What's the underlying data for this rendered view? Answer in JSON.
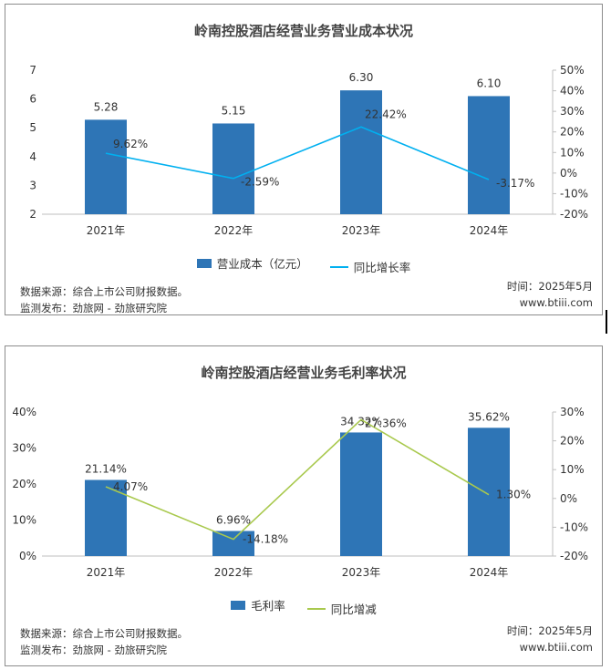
{
  "chart_data": [
    {
      "type": "bar",
      "title": "岭南控股酒店经营业务营业成本状况",
      "categories": [
        "2021年",
        "2022年",
        "2023年",
        "2024年"
      ],
      "series": [
        {
          "name": "营业成本（亿元）",
          "kind": "bar",
          "axis": "left",
          "values": [
            5.28,
            5.15,
            6.3,
            6.1
          ],
          "labels": [
            "5.28",
            "5.15",
            "6.30",
            "6.10"
          ],
          "color": "#2e75b6"
        },
        {
          "name": "同比增长率",
          "kind": "line",
          "axis": "right",
          "values": [
            9.62,
            -2.59,
            22.42,
            -3.17
          ],
          "labels": [
            "9.62%",
            "-2.59%",
            "22.42%",
            "-3.17%"
          ],
          "color": "#00b0f0"
        }
      ],
      "left_axis": {
        "min": 2,
        "max": 7,
        "ticks": [
          "7",
          "6",
          "5",
          "4",
          "3",
          "2"
        ]
      },
      "right_axis": {
        "min": -20,
        "max": 50,
        "ticks": [
          "50%",
          "40%",
          "30%",
          "20%",
          "10%",
          "0%",
          "-10%",
          "-20%"
        ]
      },
      "legend": [
        "营业成本（亿元）",
        "同比增长率"
      ],
      "source": "数据来源：综合上市公司财报数据。",
      "publisher": "监测发布：劲旅网 - 劲旅研究院",
      "date": "时间：2025年5月",
      "site": "www.btiii.com"
    },
    {
      "type": "bar",
      "title": "岭南控股酒店经营业务毛利率状况",
      "categories": [
        "2021年",
        "2022年",
        "2023年",
        "2024年"
      ],
      "series": [
        {
          "name": "毛利率",
          "kind": "bar",
          "axis": "left",
          "values": [
            21.14,
            6.96,
            34.32,
            35.62
          ],
          "labels": [
            "21.14%",
            "6.96%",
            "34.32%",
            "35.62%"
          ],
          "color": "#2e75b6"
        },
        {
          "name": "同比增减",
          "kind": "line",
          "axis": "right",
          "values": [
            4.07,
            -14.18,
            27.36,
            1.3
          ],
          "labels": [
            "4.07%",
            "-14.18%",
            "27.36%",
            "1.30%"
          ],
          "color": "#a9c94e"
        }
      ],
      "left_axis": {
        "min": 0,
        "max": 40,
        "ticks": [
          "40%",
          "30%",
          "20%",
          "10%",
          "0%"
        ]
      },
      "right_axis": {
        "min": -20,
        "max": 30,
        "ticks": [
          "30%",
          "20%",
          "10%",
          "0%",
          "-10%",
          "-20%"
        ]
      },
      "legend": [
        "毛利率",
        "同比增减"
      ],
      "source": "数据来源：综合上市公司财报数据。",
      "publisher": "监测发布：劲旅网 - 劲旅研究院",
      "date": "时间：2025年5月",
      "site": "www.btiii.com"
    }
  ]
}
